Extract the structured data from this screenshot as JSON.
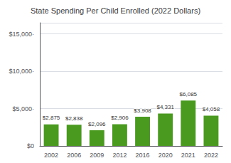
{
  "chart_data": {
    "type": "bar",
    "title": "State Spending Per Child Enrolled (2022 Dollars)",
    "categories": [
      "2002",
      "2006",
      "2009",
      "2012",
      "2016",
      "2020",
      "2021",
      "2022"
    ],
    "values": [
      2875,
      2838,
      2096,
      2906,
      3908,
      4331,
      6085,
      4058
    ],
    "value_labels": [
      "$2,875",
      "$2,838",
      "$2,096",
      "$2,906",
      "$3,908",
      "$4,331",
      "$6,085",
      "$4,058"
    ],
    "data_labels": true,
    "color": "#4a9a20",
    "ylim": [
      0,
      16500
    ],
    "yticks": [
      {
        "value": 0,
        "label": "$0"
      },
      {
        "value": 5000,
        "label": "$5,000·"
      },
      {
        "value": 10000,
        "label": "$10,000·"
      },
      {
        "value": 15000,
        "label": "$15,000·"
      }
    ],
    "grid": true
  }
}
